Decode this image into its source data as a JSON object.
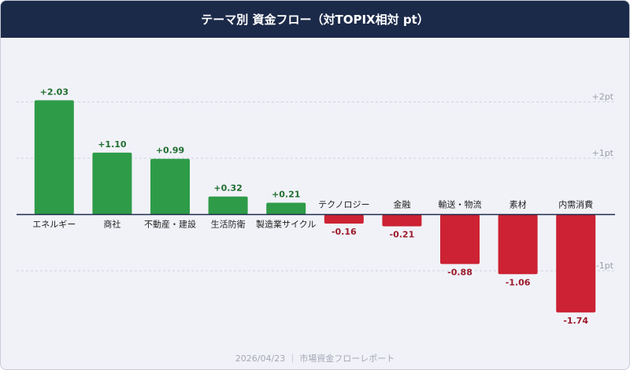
{
  "chart_data": {
    "type": "bar",
    "title": "テーマ別 資金フロー（対TOPIX相対 pt）",
    "categories": [
      "エネルギー",
      "商社",
      "不動産・建設",
      "生活防衛",
      "製造業サイクル",
      "テクノロジー",
      "金融",
      "輸送・物流",
      "素材",
      "内需消費"
    ],
    "values": [
      2.03,
      1.1,
      0.99,
      0.32,
      0.21,
      -0.16,
      -0.21,
      -0.88,
      -1.06,
      -1.74
    ],
    "value_labels": [
      "+2.03",
      "+1.10",
      "+0.99",
      "+0.32",
      "+0.21",
      "-0.16",
      "-0.21",
      "-0.88",
      "-1.06",
      "-1.74"
    ],
    "positive_color": "#2e9b48",
    "negative_color": "#cc2233",
    "ylim": [
      -2.2,
      2.4
    ],
    "yticks": [
      {
        "value": -1,
        "label": "-1pt"
      },
      {
        "value": 1,
        "label": "+1pt"
      },
      {
        "value": 2,
        "label": "+2pt"
      }
    ],
    "grid": true
  },
  "footer": {
    "date": "2026/04/23",
    "source": "市場資金フローレポート"
  }
}
